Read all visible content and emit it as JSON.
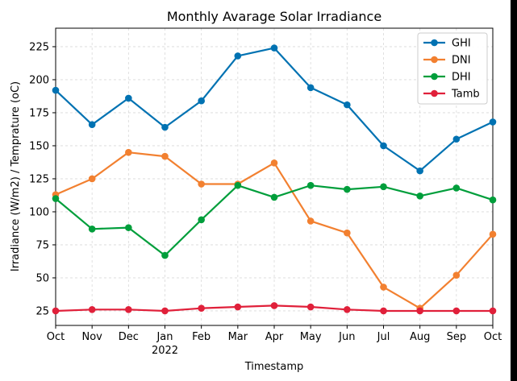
{
  "chart_data": {
    "type": "line",
    "title": "Monthly Avarage Solar Irradiance",
    "xlabel": "Timestamp",
    "ylabel": "Irradiance (W/m2) / Temprature (oC)",
    "categories": [
      "Oct",
      "Nov",
      "Dec",
      "Jan",
      "Feb",
      "Mar",
      "Apr",
      "May",
      "Jun",
      "Jul",
      "Aug",
      "Sep",
      "Oct"
    ],
    "year_label": {
      "index": 3,
      "text": "2022"
    },
    "yticks": [
      25,
      50,
      75,
      100,
      125,
      150,
      175,
      200,
      225
    ],
    "ylim": [
      14,
      239
    ],
    "grid": true,
    "legend_position": "top-right",
    "series": [
      {
        "name": "GHI",
        "color": "#0072b2",
        "values": [
          192,
          166,
          186,
          164,
          184,
          218,
          224,
          194,
          181,
          150,
          131,
          155,
          168
        ]
      },
      {
        "name": "DNI",
        "color": "#f28030",
        "values": [
          113,
          125,
          145,
          142,
          121,
          121,
          137,
          93,
          84,
          43,
          27,
          52,
          83
        ]
      },
      {
        "name": "DHI",
        "color": "#009e3b",
        "values": [
          110,
          87,
          88,
          67,
          94,
          120,
          111,
          120,
          117,
          119,
          112,
          118,
          109
        ]
      },
      {
        "name": "Tamb",
        "color": "#e0203a",
        "values": [
          25,
          26,
          26,
          25,
          27,
          28,
          29,
          28,
          26,
          25,
          25,
          25,
          25
        ]
      }
    ]
  }
}
